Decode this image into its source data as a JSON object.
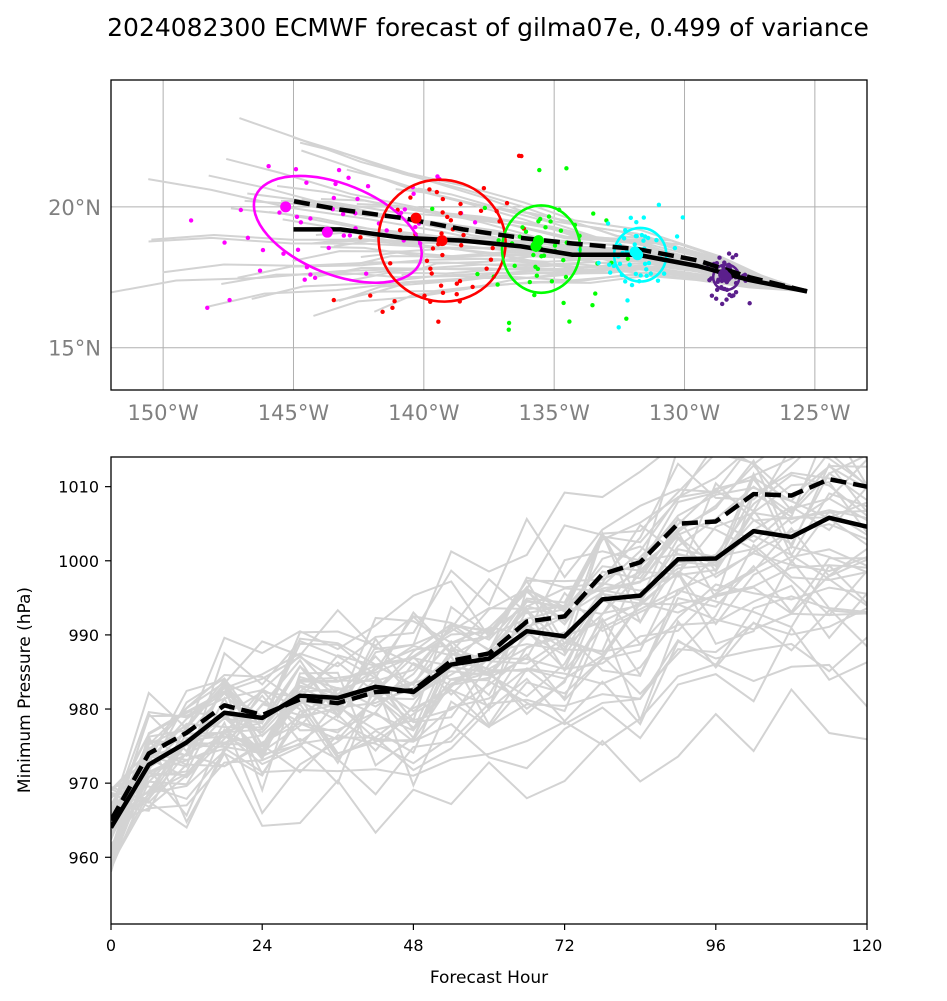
{
  "title": "2024082300 ECMWF forecast of gilma07e, 0.499 of variance",
  "colors": {
    "ensemble": "#d3d3d3",
    "mean": "#000000",
    "ellipses": [
      "#ff00ff",
      "#ff0000",
      "#00ff00",
      "#00ffff",
      "#5b1f8c"
    ]
  },
  "chart_data": [
    {
      "type": "line",
      "subtype": "track-map",
      "xlim": [
        -152,
        -123
      ],
      "ylim": [
        13.5,
        24.5
      ],
      "x_ticks": [
        -150,
        -145,
        -140,
        -135,
        -130,
        -125
      ],
      "x_tick_labels": [
        "150°W",
        "145°W",
        "140°W",
        "135°W",
        "130°W",
        "125°W"
      ],
      "y_ticks": [
        15,
        20
      ],
      "y_tick_labels": [
        "15°N",
        "20°N"
      ],
      "grid": true,
      "series": [
        {
          "style": "solid",
          "x": [
            -125.3,
            -127.5,
            -129.5,
            -131.8,
            -134.3,
            -136.3,
            -138.5,
            -140.8,
            -143.2,
            -145.0
          ],
          "y": [
            17.0,
            17.4,
            17.9,
            18.3,
            18.3,
            18.6,
            18.8,
            18.9,
            19.2,
            19.2
          ]
        },
        {
          "style": "dashed",
          "x": [
            -125.3,
            -127.5,
            -129.5,
            -131.8,
            -134.3,
            -136.3,
            -138.5,
            -140.8,
            -143.2,
            -145.0
          ],
          "y": [
            17.0,
            17.5,
            18.1,
            18.5,
            18.7,
            18.9,
            19.2,
            19.6,
            19.9,
            20.2
          ]
        }
      ],
      "ellipses": [
        {
          "center": [
            -143.3,
            19.2
          ],
          "width_deg": 6.8,
          "height_deg": 3.2,
          "angle_deg": -22,
          "mean_dot": [
            -143.7,
            19.1
          ],
          "dashed_dot": [
            -145.3,
            20.0
          ]
        },
        {
          "center": [
            -139.3,
            18.8
          ],
          "width_deg": 4.9,
          "height_deg": 4.3,
          "angle_deg": -20,
          "mean_dot": [
            -139.3,
            18.8
          ],
          "dashed_dot": [
            -140.3,
            19.6
          ]
        },
        {
          "center": [
            -135.5,
            18.5
          ],
          "width_deg": 3.0,
          "height_deg": 3.1,
          "angle_deg": 0,
          "mean_dot": [
            -135.6,
            18.8
          ],
          "dashed_dot": [
            -135.7,
            18.6
          ]
        },
        {
          "center": [
            -131.7,
            18.3
          ],
          "width_deg": 2.0,
          "height_deg": 1.9,
          "angle_deg": 0,
          "mean_dot": [
            -131.8,
            18.3
          ],
          "dashed_dot": [
            -131.9,
            18.4
          ]
        },
        {
          "center": [
            -128.4,
            17.5
          ],
          "width_deg": 1.0,
          "height_deg": 0.9,
          "angle_deg": 0,
          "mean_dot": [
            -128.4,
            17.5
          ],
          "dashed_dot": [
            -128.5,
            17.6
          ]
        }
      ]
    },
    {
      "type": "line",
      "xlabel": "Forecast Hour",
      "ylabel": "Minimum Pressure (hPa)",
      "xlim": [
        0,
        120
      ],
      "ylim": [
        951,
        1014
      ],
      "x_ticks": [
        0,
        24,
        48,
        72,
        96,
        120
      ],
      "y_ticks": [
        960,
        970,
        980,
        990,
        1000,
        1010
      ],
      "x": [
        0,
        6,
        12,
        18,
        24,
        30,
        36,
        42,
        48,
        54,
        60,
        66,
        72,
        78,
        84,
        90,
        96,
        102,
        108,
        114,
        120
      ],
      "series": [
        {
          "style": "solid",
          "values": [
            964,
            972.5,
            975.5,
            979.5,
            978.8,
            981.8,
            981.5,
            983.0,
            982.3,
            986.0,
            986.8,
            990.5,
            989.8,
            994.8,
            995.3,
            1000.2,
            1000.3,
            1004.0,
            1003.2,
            1005.8,
            1004.6
          ]
        },
        {
          "style": "dashed",
          "values": [
            965,
            974.0,
            976.8,
            980.5,
            979.2,
            981.3,
            980.8,
            982.3,
            982.5,
            986.5,
            987.5,
            991.8,
            992.5,
            998.2,
            999.8,
            1005.0,
            1005.3,
            1009.0,
            1008.8,
            1011.0,
            1010.0
          ]
        }
      ]
    }
  ]
}
